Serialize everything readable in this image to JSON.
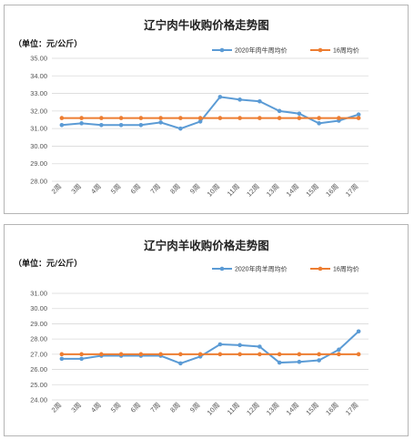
{
  "chart_data": [
    {
      "type": "line",
      "title": "辽宁肉牛收购价格走势图",
      "unit_label": "（单位：元/公斤）",
      "categories": [
        "2周",
        "3周",
        "4周",
        "5周",
        "6周",
        "7周",
        "8周",
        "9周",
        "10周",
        "11周",
        "12周",
        "13周",
        "14周",
        "15周",
        "16周",
        "17周"
      ],
      "ylim": [
        28,
        35
      ],
      "yticks": [
        "28.00",
        "29.00",
        "30.00",
        "31.00",
        "32.00",
        "33.00",
        "34.00",
        "35.00"
      ],
      "grid": true,
      "legend_position": "top-right",
      "series": [
        {
          "name": "2020年肉牛周均价",
          "color": "#5b9bd5",
          "values": [
            31.2,
            31.3,
            31.2,
            31.2,
            31.2,
            31.35,
            31.0,
            31.4,
            32.8,
            32.65,
            32.55,
            32.0,
            31.85,
            31.3,
            31.45,
            31.8
          ]
        },
        {
          "name": "16周均价",
          "color": "#ed7d31",
          "values": [
            31.6,
            31.6,
            31.6,
            31.6,
            31.6,
            31.6,
            31.6,
            31.6,
            31.6,
            31.6,
            31.6,
            31.6,
            31.6,
            31.6,
            31.6,
            31.6
          ]
        }
      ]
    },
    {
      "type": "line",
      "title": "辽宁肉羊收购价格走势图",
      "unit_label": "（单位：元/公斤）",
      "categories": [
        "2周",
        "3周",
        "4周",
        "5周",
        "6周",
        "7周",
        "8周",
        "9周",
        "10周",
        "11周",
        "12周",
        "13周",
        "14周",
        "15周",
        "16周",
        "17周"
      ],
      "ylim": [
        24,
        31
      ],
      "yticks": [
        "24.00",
        "25.00",
        "26.00",
        "27.00",
        "28.00",
        "29.00",
        "30.00",
        "31.00"
      ],
      "grid": true,
      "legend_position": "top-right",
      "series": [
        {
          "name": "2020年肉羊周均价",
          "color": "#5b9bd5",
          "values": [
            26.7,
            26.7,
            26.9,
            26.9,
            26.9,
            26.9,
            26.4,
            26.85,
            27.65,
            27.6,
            27.5,
            26.45,
            26.5,
            26.6,
            27.3,
            28.5
          ]
        },
        {
          "name": "16周均价",
          "color": "#ed7d31",
          "values": [
            27.0,
            27.0,
            27.0,
            27.0,
            27.0,
            27.0,
            27.0,
            27.0,
            27.0,
            27.0,
            27.0,
            27.0,
            27.0,
            27.0,
            27.0,
            27.0
          ]
        }
      ]
    }
  ]
}
